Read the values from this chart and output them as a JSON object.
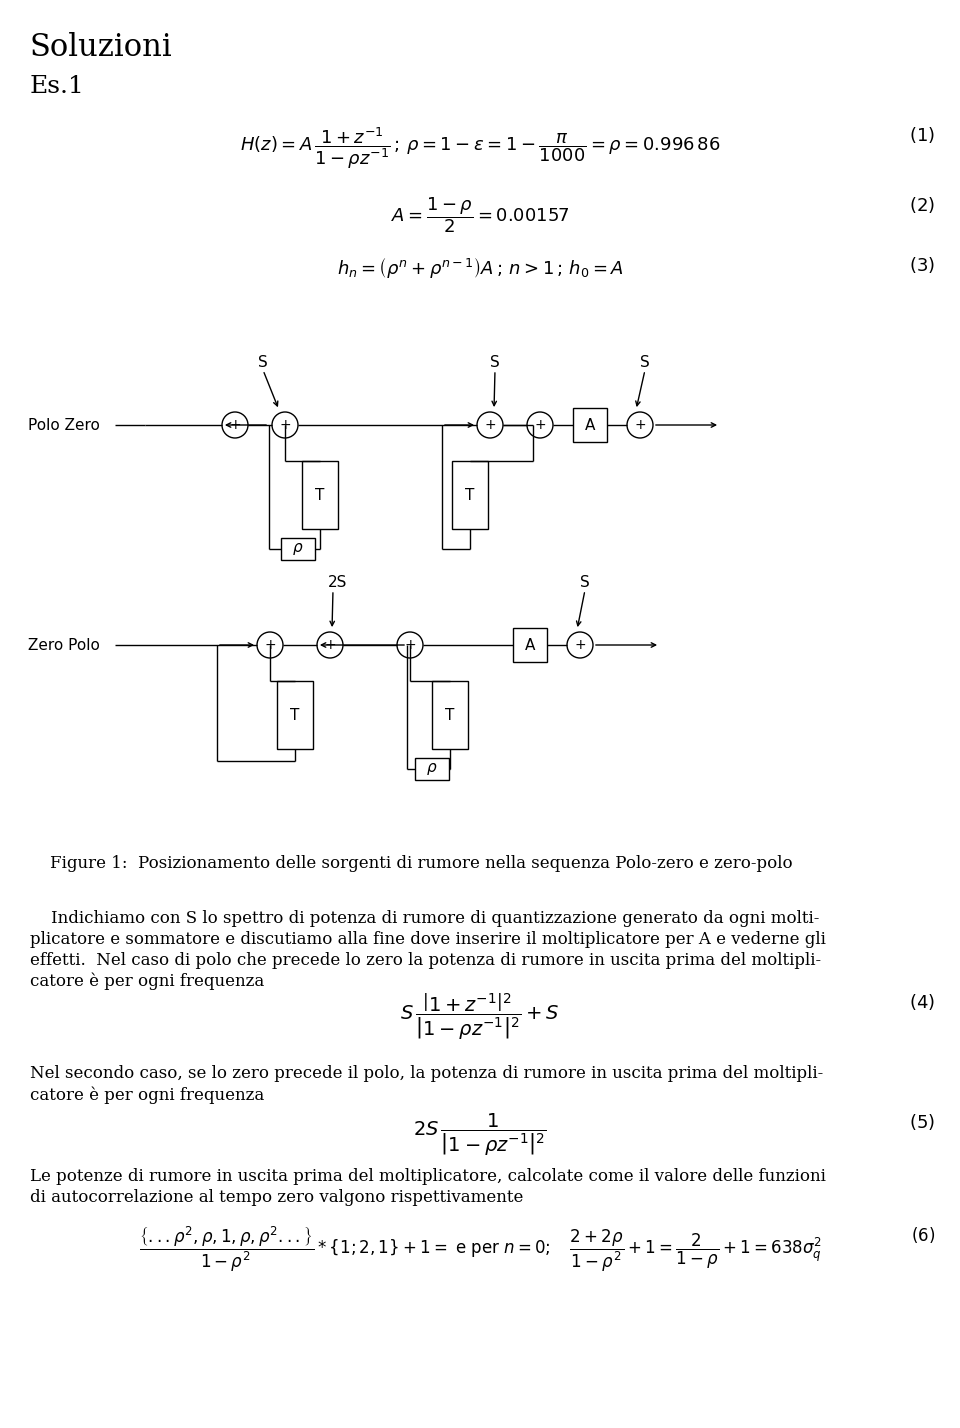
{
  "title": "Soluzioni",
  "subtitle": "Es.1",
  "bg_color": "#ffffff",
  "fig_caption": "Figure 1:  Posizionamento delle sorgenti di rumore nella sequenza Polo-zero e zero-polo"
}
